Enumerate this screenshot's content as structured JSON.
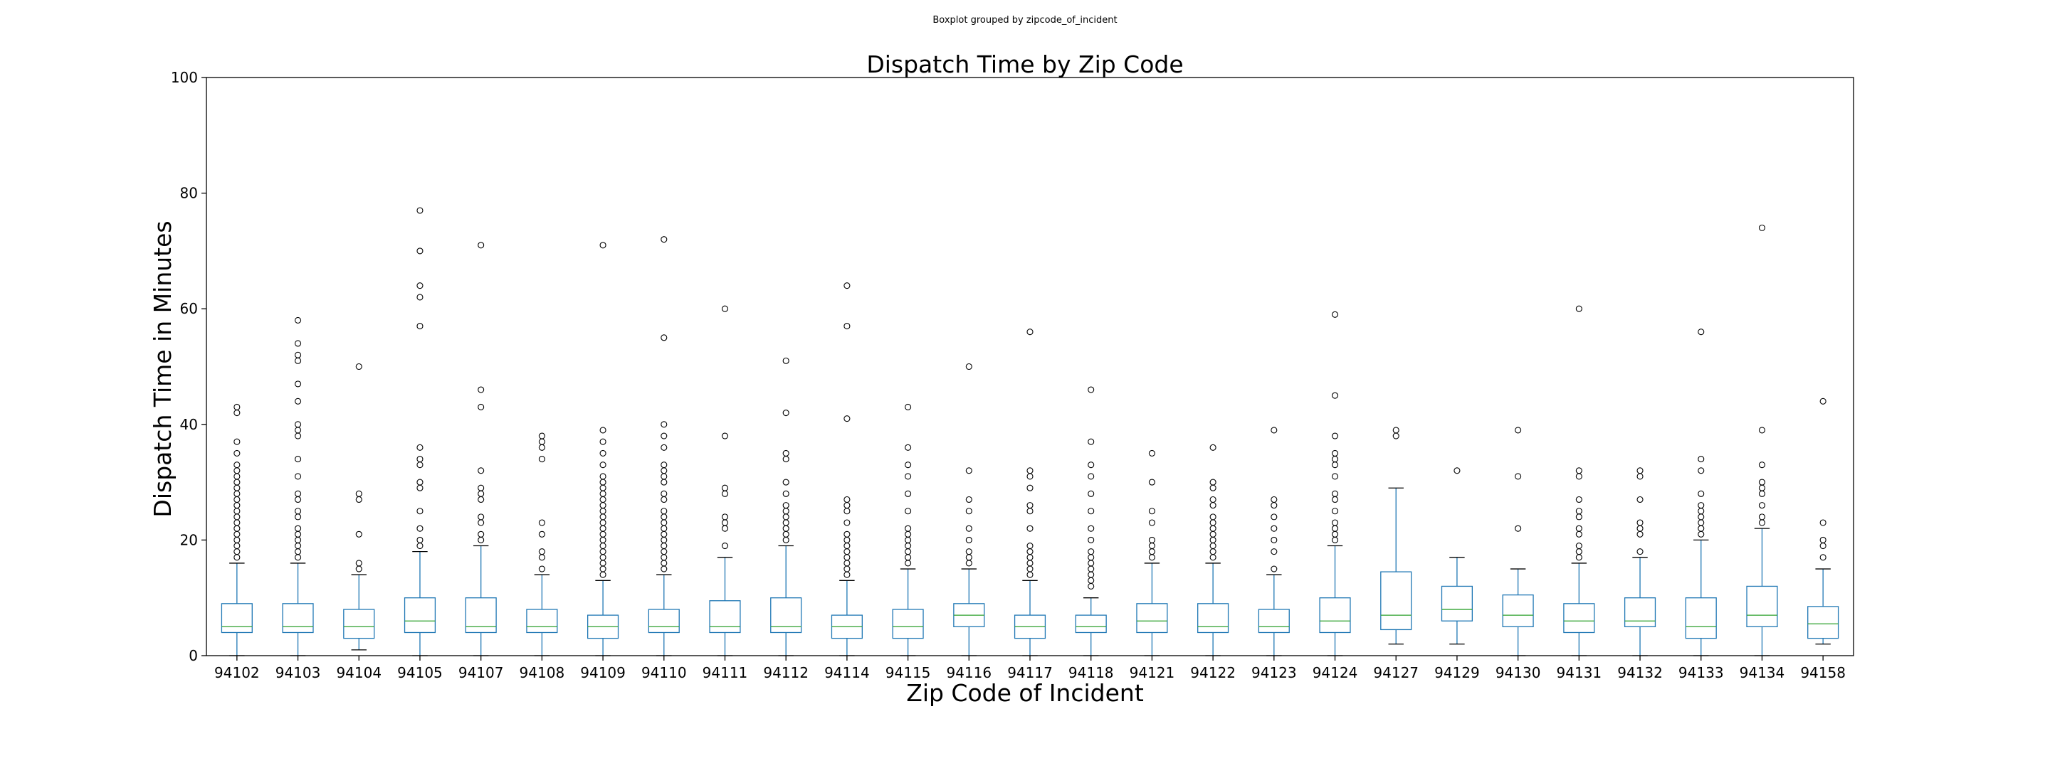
{
  "figure": {
    "suptitle": "Boxplot grouped by zipcode_of_incident"
  },
  "chart_data": {
    "type": "box",
    "title": "Dispatch Time by Zip Code",
    "xlabel": "Zip Code of Incident",
    "ylabel": "Dispatch Time in Minutes",
    "ylim": [
      0,
      100
    ],
    "yticks": [
      "0",
      "20",
      "40",
      "60",
      "80",
      "100"
    ],
    "grid": false,
    "colors": {
      "box": "#1f77b4",
      "median": "#2ca02c",
      "flier": "#000000"
    },
    "categories": [
      "94102",
      "94103",
      "94104",
      "94105",
      "94107",
      "94108",
      "94109",
      "94110",
      "94111",
      "94112",
      "94114",
      "94115",
      "94116",
      "94117",
      "94118",
      "94121",
      "94122",
      "94123",
      "94124",
      "94127",
      "94129",
      "94130",
      "94131",
      "94132",
      "94133",
      "94134",
      "94158"
    ],
    "boxes": [
      {
        "whislo": 0,
        "q1": 4,
        "med": 5,
        "q3": 9,
        "whishi": 16,
        "fliers": [
          17,
          18,
          19,
          20,
          21,
          22,
          23,
          24,
          25,
          26,
          27,
          28,
          29,
          30,
          31,
          32,
          33,
          35,
          37,
          42,
          43
        ]
      },
      {
        "whislo": 0,
        "q1": 4,
        "med": 5,
        "q3": 9,
        "whishi": 16,
        "fliers": [
          17,
          18,
          19,
          20,
          21,
          22,
          24,
          25,
          27,
          28,
          31,
          34,
          38,
          39,
          40,
          44,
          47,
          51,
          52,
          54,
          58
        ]
      },
      {
        "whislo": 1,
        "q1": 3,
        "med": 5,
        "q3": 8,
        "whishi": 14,
        "fliers": [
          15,
          16,
          21,
          27,
          28,
          50
        ]
      },
      {
        "whislo": 0,
        "q1": 4,
        "med": 6,
        "q3": 10,
        "whishi": 18,
        "fliers": [
          19,
          20,
          22,
          25,
          29,
          30,
          33,
          34,
          36,
          57,
          62,
          64,
          70,
          77
        ]
      },
      {
        "whislo": 0,
        "q1": 4,
        "med": 5,
        "q3": 10,
        "whishi": 19,
        "fliers": [
          20,
          21,
          23,
          24,
          27,
          28,
          29,
          32,
          43,
          46,
          71
        ]
      },
      {
        "whislo": 0,
        "q1": 4,
        "med": 5,
        "q3": 8,
        "whishi": 14,
        "fliers": [
          15,
          17,
          18,
          21,
          23,
          34,
          36,
          37,
          38
        ]
      },
      {
        "whislo": 0,
        "q1": 3,
        "med": 5,
        "q3": 7,
        "whishi": 13,
        "fliers": [
          14,
          15,
          16,
          17,
          18,
          19,
          20,
          21,
          22,
          23,
          24,
          25,
          26,
          27,
          28,
          29,
          30,
          31,
          33,
          35,
          37,
          39,
          71
        ]
      },
      {
        "whislo": 0,
        "q1": 4,
        "med": 5,
        "q3": 8,
        "whishi": 14,
        "fliers": [
          15,
          16,
          17,
          18,
          19,
          20,
          21,
          22,
          23,
          24,
          25,
          27,
          28,
          30,
          31,
          32,
          33,
          36,
          38,
          40,
          55,
          72
        ]
      },
      {
        "whislo": 0,
        "q1": 4,
        "med": 5,
        "q3": 9.5,
        "whishi": 17,
        "fliers": [
          19,
          22,
          23,
          24,
          28,
          29,
          38,
          60
        ]
      },
      {
        "whislo": 0,
        "q1": 4,
        "med": 5,
        "q3": 10,
        "whishi": 19,
        "fliers": [
          20,
          21,
          22,
          23,
          24,
          25,
          26,
          28,
          30,
          34,
          35,
          42,
          51
        ]
      },
      {
        "whislo": 0,
        "q1": 3,
        "med": 5,
        "q3": 7,
        "whishi": 13,
        "fliers": [
          14,
          15,
          16,
          17,
          18,
          19,
          20,
          21,
          23,
          25,
          26,
          27,
          41,
          57,
          64
        ]
      },
      {
        "whislo": 0,
        "q1": 3,
        "med": 5,
        "q3": 8,
        "whishi": 15,
        "fliers": [
          16,
          17,
          18,
          19,
          20,
          21,
          22,
          25,
          28,
          31,
          33,
          36,
          43
        ]
      },
      {
        "whislo": 0,
        "q1": 5,
        "med": 7,
        "q3": 9,
        "whishi": 15,
        "fliers": [
          16,
          17,
          18,
          20,
          22,
          25,
          27,
          32,
          50
        ]
      },
      {
        "whislo": 0,
        "q1": 3,
        "med": 5,
        "q3": 7,
        "whishi": 13,
        "fliers": [
          14,
          15,
          16,
          17,
          18,
          19,
          22,
          25,
          26,
          29,
          31,
          32,
          56
        ]
      },
      {
        "whislo": 0,
        "q1": 4,
        "med": 5,
        "q3": 7,
        "whishi": 10,
        "fliers": [
          12,
          13,
          14,
          15,
          16,
          17,
          18,
          20,
          22,
          25,
          28,
          31,
          33,
          37,
          46
        ]
      },
      {
        "whislo": 0,
        "q1": 4,
        "med": 6,
        "q3": 9,
        "whishi": 16,
        "fliers": [
          17,
          18,
          19,
          20,
          23,
          25,
          30,
          35
        ]
      },
      {
        "whislo": 0,
        "q1": 4,
        "med": 5,
        "q3": 9,
        "whishi": 16,
        "fliers": [
          17,
          18,
          19,
          20,
          21,
          22,
          23,
          24,
          26,
          27,
          29,
          30,
          36
        ]
      },
      {
        "whislo": 0,
        "q1": 4,
        "med": 5,
        "q3": 8,
        "whishi": 14,
        "fliers": [
          15,
          18,
          20,
          22,
          24,
          26,
          27,
          39
        ]
      },
      {
        "whislo": 0,
        "q1": 4,
        "med": 6,
        "q3": 10,
        "whishi": 19,
        "fliers": [
          20,
          21,
          22,
          23,
          25,
          27,
          28,
          31,
          33,
          34,
          35,
          38,
          45,
          59
        ]
      },
      {
        "whislo": 2,
        "q1": 4.5,
        "med": 7,
        "q3": 14.5,
        "whishi": 29,
        "fliers": [
          38,
          39
        ]
      },
      {
        "whislo": 2,
        "q1": 6,
        "med": 8,
        "q3": 12,
        "whishi": 17,
        "fliers": [
          32
        ]
      },
      {
        "whislo": 0,
        "q1": 5,
        "med": 7,
        "q3": 10.5,
        "whishi": 15,
        "fliers": [
          22,
          31,
          39
        ]
      },
      {
        "whislo": 0,
        "q1": 4,
        "med": 6,
        "q3": 9,
        "whishi": 16,
        "fliers": [
          17,
          18,
          19,
          21,
          22,
          24,
          25,
          27,
          31,
          32,
          60
        ]
      },
      {
        "whislo": 0,
        "q1": 5,
        "med": 6,
        "q3": 10,
        "whishi": 17,
        "fliers": [
          18,
          21,
          22,
          23,
          27,
          31,
          32
        ]
      },
      {
        "whislo": 0,
        "q1": 3,
        "med": 5,
        "q3": 10,
        "whishi": 20,
        "fliers": [
          21,
          22,
          23,
          24,
          25,
          26,
          28,
          32,
          34,
          56
        ]
      },
      {
        "whislo": 0,
        "q1": 5,
        "med": 7,
        "q3": 12,
        "whishi": 22,
        "fliers": [
          23,
          24,
          26,
          28,
          29,
          30,
          33,
          39,
          74
        ]
      },
      {
        "whislo": 2,
        "q1": 3,
        "med": 5.5,
        "q3": 8.5,
        "whishi": 15,
        "fliers": [
          17,
          19,
          20,
          23,
          44
        ]
      }
    ]
  }
}
